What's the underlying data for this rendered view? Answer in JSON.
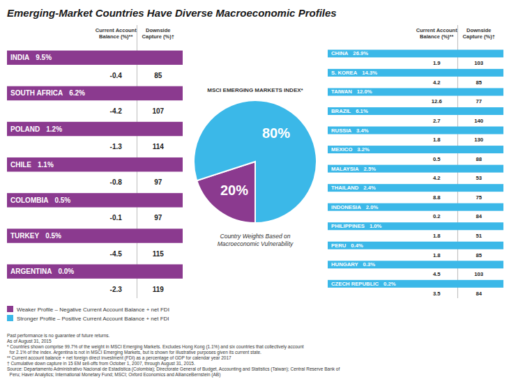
{
  "chart_data": {
    "type": "pie",
    "title": "Emerging-Market Countries Have Diverse Macroeconomic Profiles",
    "subtitle": "MSCI EMERGING MARKETS INDEX*",
    "annotations": [
      "Country Weights Based on\nMacroeconomic Vulnerability"
    ],
    "categories": [
      "Weaker Profile – Negative Current Account Balance + net FDI",
      "Stronger Profile – Positive Current Account Balance + net FDI"
    ],
    "values": [
      20,
      80
    ],
    "value_labels": [
      "20%",
      "80%"
    ],
    "data_labels": true,
    "colors": [
      "#8B3A8F",
      "#3BB8E8"
    ],
    "legend": "lower left",
    "columns": [
      "Current Account\nBalance (%)**",
      "Downside\nCapture (%)†"
    ],
    "panels": [
      {
        "color": "#8B3A8F",
        "rows": [
          {
            "name": "INDIA",
            "share": "9.5%",
            "cab": -0.4,
            "dc": 85
          },
          {
            "name": "SOUTH AFRICA",
            "share": "6.2%",
            "cab": -4.2,
            "dc": 107
          },
          {
            "name": "POLAND",
            "share": "1.2%",
            "cab": -1.3,
            "dc": 114
          },
          {
            "name": "CHILE",
            "share": "1.1%",
            "cab": -0.8,
            "dc": 97
          },
          {
            "name": "COLOMBIA",
            "share": "0.5%",
            "cab": -0.1,
            "dc": 97
          },
          {
            "name": "TURKEY",
            "share": "0.5%",
            "cab": -4.5,
            "dc": 115
          },
          {
            "name": "ARGENTINA",
            "share": "0.0%",
            "cab": -2.3,
            "dc": 119
          }
        ]
      },
      {
        "color": "#3BB8E8",
        "rows": [
          {
            "name": "CHINA",
            "share": "26.9%",
            "cab": 1.9,
            "dc": 103
          },
          {
            "name": "S. KOREA",
            "share": "14.3%",
            "cab": 4.2,
            "dc": 85
          },
          {
            "name": "TAIWAN",
            "share": "12.0%",
            "cab": 12.6,
            "dc": 77
          },
          {
            "name": "BRAZIL",
            "share": "6.1%",
            "cab": 2.7,
            "dc": 140
          },
          {
            "name": "RUSSIA",
            "share": "3.4%",
            "cab": 1.8,
            "dc": 130
          },
          {
            "name": "MEXICO",
            "share": "3.2%",
            "cab": 0.5,
            "dc": 88
          },
          {
            "name": "MALAYSIA",
            "share": "2.5%",
            "cab": 4.2,
            "dc": 53
          },
          {
            "name": "THAILAND",
            "share": "2.4%",
            "cab": 8.8,
            "dc": 75
          },
          {
            "name": "INDONESIA",
            "share": "2.0%",
            "cab": 0.2,
            "dc": 84
          },
          {
            "name": "PHILIPPINES",
            "share": "1.0%",
            "cab": 1.8,
            "dc": 51
          },
          {
            "name": "PERU",
            "share": "0.4%",
            "cab": 1.8,
            "dc": 85
          },
          {
            "name": "HUNGARY",
            "share": "0.3%",
            "cab": 4.5,
            "dc": 103
          },
          {
            "name": "CZECH REPUBLIC",
            "share": "0.2%",
            "cab": 3.5,
            "dc": 84
          }
        ]
      }
    ],
    "footnotes": [
      "Past performance is no guarantee of future returns.",
      "As of August 31, 2015",
      "* Countries shown comprise 99.7% of the weight in MSCI Emerging Markets. Excludes Hong Kong (1.1%) and six countries that collectively account",
      "  for 2.1% of the index. Argentina is not in MSCI Emerging Markets, but is shown for illustrative purposes given its current state.",
      "** Current account balance + net foreign direct investment (FDI) as a percentage of GDP for calendar year 2017",
      "† Cumulative down capture in 15 EM sell-offs from October 1, 2007, through August 31, 2015.",
      "Source: Departamento Administrativo Nacional de Estadistica (Colombia); Directorate General of Budget, Accounting and Statistics (Taiwan); Central Reserve Bank of",
      "  Peru; Haver Analytics; International Monetary Fund; MSCI; Oxford Economics and AllianceBernstein (AB)"
    ]
  }
}
